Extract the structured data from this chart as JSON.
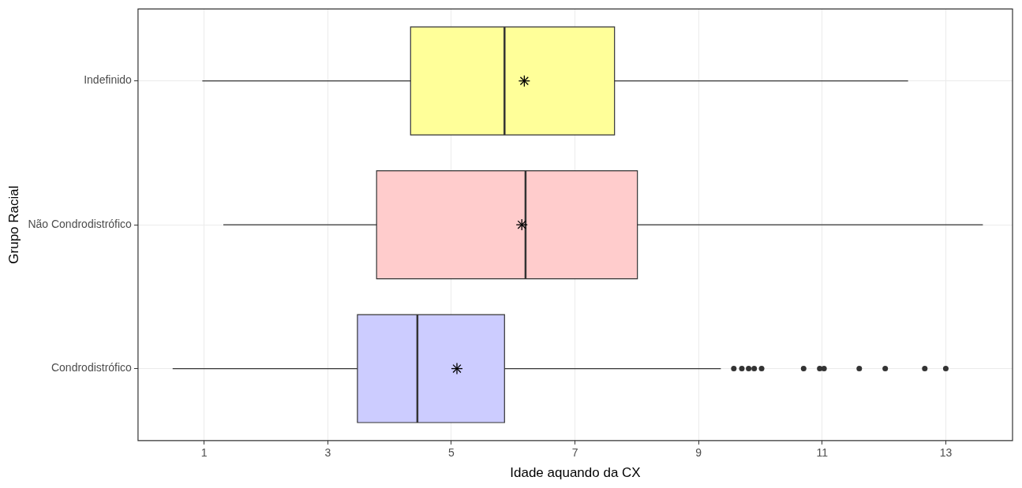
{
  "chart_data": {
    "type": "box",
    "orientation": "horizontal",
    "xlabel": "Idade aquando da CX",
    "ylabel": "Grupo Racial",
    "categories": [
      "Indefinido",
      "Não Condrodistrófico",
      "Condrodistrófico"
    ],
    "colors": [
      "#ffff99",
      "#ffcccc",
      "#ccccff"
    ],
    "boxes": [
      {
        "low": 0.97,
        "q1": 4.34,
        "median": 5.86,
        "q3": 7.64,
        "high": 12.39,
        "mean": 6.18
      },
      {
        "low": 1.31,
        "q1": 3.79,
        "median": 6.2,
        "q3": 8.01,
        "high": 13.6,
        "mean": 6.14
      },
      {
        "low": 0.49,
        "q1": 3.48,
        "median": 4.45,
        "q3": 5.86,
        "high": 9.36,
        "mean": 5.09,
        "outliers": [
          9.57,
          9.7,
          9.81,
          9.9,
          10.02,
          10.7,
          10.96,
          11.03,
          11.6,
          12.02,
          12.66,
          13.0
        ]
      }
    ],
    "xlim": [
      -0.07,
      14.08
    ],
    "xticks": [
      1,
      3,
      5,
      7,
      9,
      11,
      13
    ],
    "grid": true,
    "legend": false
  }
}
